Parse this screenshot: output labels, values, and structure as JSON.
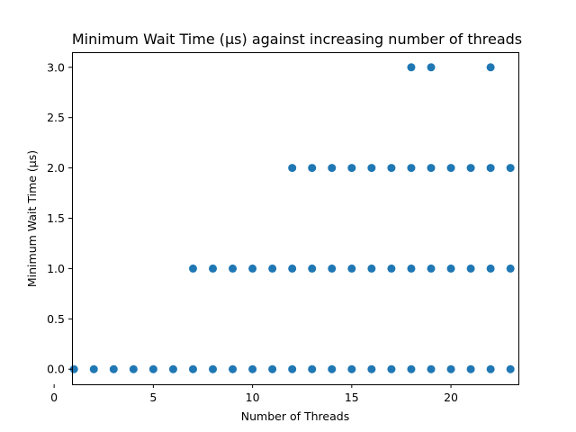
{
  "chart_data": {
    "type": "scatter",
    "title": "Minimum Wait Time (µs) against increasing number of threads",
    "xlabel": "Number of Threads",
    "ylabel": "Minimum Wait Time (µs)",
    "xlim": [
      0.9,
      23.4
    ],
    "ylim": [
      -0.15,
      3.15
    ],
    "xticks": [
      0,
      5,
      10,
      15,
      20
    ],
    "xtick_labels": [
      "0",
      "5",
      "10",
      "15",
      "20"
    ],
    "yticks": [
      0.0,
      0.5,
      1.0,
      1.5,
      2.0,
      2.5,
      3.0
    ],
    "ytick_labels": [
      "0.0",
      "0.5",
      "1.0",
      "1.5",
      "2.0",
      "2.5",
      "3.0"
    ],
    "grid": false,
    "marker_color": "#1f77b4",
    "series": [
      {
        "points": [
          [
            1,
            0
          ],
          [
            2,
            0
          ],
          [
            3,
            0
          ],
          [
            4,
            0
          ],
          [
            5,
            0
          ],
          [
            6,
            0
          ],
          [
            7,
            0
          ],
          [
            8,
            0
          ],
          [
            9,
            0
          ],
          [
            10,
            0
          ],
          [
            11,
            0
          ],
          [
            12,
            0
          ],
          [
            13,
            0
          ],
          [
            14,
            0
          ],
          [
            15,
            0
          ],
          [
            16,
            0
          ],
          [
            17,
            0
          ],
          [
            18,
            0
          ],
          [
            19,
            0
          ],
          [
            20,
            0
          ],
          [
            21,
            0
          ],
          [
            22,
            0
          ],
          [
            23,
            0
          ],
          [
            7,
            1
          ],
          [
            8,
            1
          ],
          [
            9,
            1
          ],
          [
            10,
            1
          ],
          [
            11,
            1
          ],
          [
            12,
            1
          ],
          [
            13,
            1
          ],
          [
            14,
            1
          ],
          [
            15,
            1
          ],
          [
            16,
            1
          ],
          [
            17,
            1
          ],
          [
            18,
            1
          ],
          [
            19,
            1
          ],
          [
            20,
            1
          ],
          [
            21,
            1
          ],
          [
            22,
            1
          ],
          [
            23,
            1
          ],
          [
            12,
            2
          ],
          [
            13,
            2
          ],
          [
            14,
            2
          ],
          [
            15,
            2
          ],
          [
            16,
            2
          ],
          [
            17,
            2
          ],
          [
            18,
            2
          ],
          [
            19,
            2
          ],
          [
            20,
            2
          ],
          [
            21,
            2
          ],
          [
            22,
            2
          ],
          [
            23,
            2
          ],
          [
            18,
            3
          ],
          [
            19,
            3
          ],
          [
            22,
            3
          ]
        ]
      }
    ]
  }
}
